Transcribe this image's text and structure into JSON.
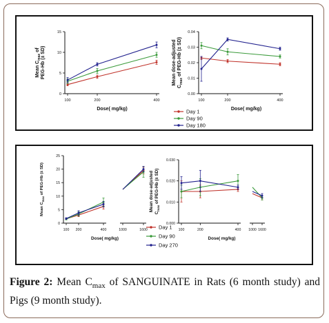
{
  "caption": {
    "label": "Figure 2:",
    "text_before": "Mean C",
    "subscript": "max",
    "text_after": " of SANGUINATE in Rats (6 month study) and Pigs (9 month study)."
  },
  "colors": {
    "red": "#c0322a",
    "green": "#3a9a3a",
    "blue": "#22228e",
    "errbar": "#888888"
  },
  "chart_data": [
    {
      "type": "line",
      "id": "rats-cmax",
      "ylabel_line1": "Mean C",
      "ylabel_sub": "max",
      "ylabel_line1b": " of",
      "ylabel_line2": "PEG-Hb (± SD)",
      "xlabel": "Dose( mg/kg)",
      "x": [
        100,
        200,
        400
      ],
      "xlim": [
        100,
        400
      ],
      "ylim": [
        0,
        15
      ],
      "xticks": [
        "100",
        "200",
        "400"
      ],
      "yticks": [
        "0",
        "5",
        "10",
        "15"
      ],
      "series": [
        {
          "name": "Day 1",
          "color": "red",
          "values": [
            2.2,
            4.1,
            7.6
          ],
          "err": [
            0.3,
            0.4,
            0.5
          ]
        },
        {
          "name": "Day 90",
          "color": "green",
          "values": [
            3.0,
            5.5,
            9.4
          ],
          "err": [
            0.6,
            0.6,
            0.6
          ]
        },
        {
          "name": "Day 180",
          "color": "blue",
          "values": [
            3.3,
            7.1,
            11.8
          ],
          "err": [
            0.6,
            0.4,
            0.7
          ]
        }
      ]
    },
    {
      "type": "line",
      "id": "rats-dose-adjusted",
      "ylabel_line1": "Mean dose-adjusted",
      "ylabel_line2a": "C",
      "ylabel_sub": "max",
      "ylabel_line2b": " of PEG-Hb (± SD)",
      "xlabel": "Dose( mg/kg)",
      "x": [
        100,
        200,
        400
      ],
      "xlim": [
        100,
        400
      ],
      "ylim": [
        0,
        0.04
      ],
      "xticks": [
        "100",
        "200",
        "400"
      ],
      "yticks": [
        "0.00",
        "0.01",
        "0.02",
        "0.03",
        "0.04"
      ],
      "series": [
        {
          "name": "Day 1",
          "color": "red",
          "values": [
            0.023,
            0.021,
            0.019
          ],
          "err": [
            0.001,
            0.001,
            0.001
          ]
        },
        {
          "name": "Day 90",
          "color": "green",
          "values": [
            0.031,
            0.027,
            0.024
          ],
          "err": [
            0.002,
            0.002,
            0.001
          ]
        },
        {
          "name": "Day 180",
          "color": "blue",
          "values": [
            0.016,
            0.035,
            0.029
          ],
          "err": [
            0.008,
            0.001,
            0.001
          ]
        }
      ],
      "legend": [
        "Day 1",
        "Day 90",
        "Day 180"
      ]
    },
    {
      "type": "line",
      "id": "pigs-cmax",
      "ylabel_line1": "Mean C",
      "ylabel_sub": "max",
      "ylabel_line1b": " of PEG-Hb (± SD)",
      "xlabel": "Dose( mg/kg)",
      "x": [
        100,
        200,
        400,
        1000,
        1600
      ],
      "axis_break": [
        400,
        1000
      ],
      "ylim": [
        0,
        25
      ],
      "xticks": [
        "100",
        "200",
        "400",
        "1000",
        "1600"
      ],
      "yticks": [
        "0",
        "5",
        "10",
        "15",
        "20",
        "25"
      ],
      "series": [
        {
          "name": "Day 1",
          "color": "red",
          "values": [
            1.6,
            3.0,
            6.2,
            12.5,
            19.5
          ],
          "err": [
            0.3,
            0.6,
            1.0,
            0,
            1.2
          ]
        },
        {
          "name": "Day 90",
          "color": "green",
          "values": [
            1.5,
            3.4,
            7.8,
            12.5,
            19.0
          ],
          "err": [
            0.3,
            0.8,
            1.5,
            0,
            2.0
          ]
        },
        {
          "name": "Day 270",
          "color": "blue",
          "values": [
            1.7,
            3.8,
            7.0,
            12.5,
            20.0
          ],
          "err": [
            0.3,
            0.8,
            1.0,
            0,
            1.0
          ]
        }
      ]
    },
    {
      "type": "line",
      "id": "pigs-dose-adjusted",
      "ylabel_line1": "Mean dose-adjusted",
      "ylabel_line2a": "C",
      "ylabel_sub": "max",
      "ylabel_line2b": " of PEG-Hb (± SD)",
      "xlabel": "Dose( mg/kg)",
      "x": [
        100,
        200,
        400,
        1000,
        1600
      ],
      "axis_break": [
        400,
        1000
      ],
      "ylim": [
        0,
        0.03
      ],
      "xticks": [
        "100",
        "200",
        "400",
        "1000",
        "1600"
      ],
      "yticks": [
        "0.000",
        "0.010",
        "0.020",
        "0.030"
      ],
      "series": [
        {
          "name": "Day 1",
          "color": "red",
          "values": [
            0.015,
            0.015,
            0.016,
            0.014,
            0.012
          ],
          "err": [
            0.005,
            0.003,
            0.001,
            0,
            0.001
          ]
        },
        {
          "name": "Day 90",
          "color": "green",
          "values": [
            0.015,
            0.017,
            0.02,
            0.017,
            0.012
          ],
          "err": [
            0.003,
            0.004,
            0.003,
            0,
            0.001
          ]
        },
        {
          "name": "Day 270",
          "color": "blue",
          "values": [
            0.019,
            0.02,
            0.017,
            0.015,
            0.013
          ],
          "err": [
            0.003,
            0.005,
            0.001,
            0,
            0.001
          ]
        }
      ],
      "legend": [
        "Day 1",
        "Day 90",
        "Day 270"
      ]
    }
  ]
}
